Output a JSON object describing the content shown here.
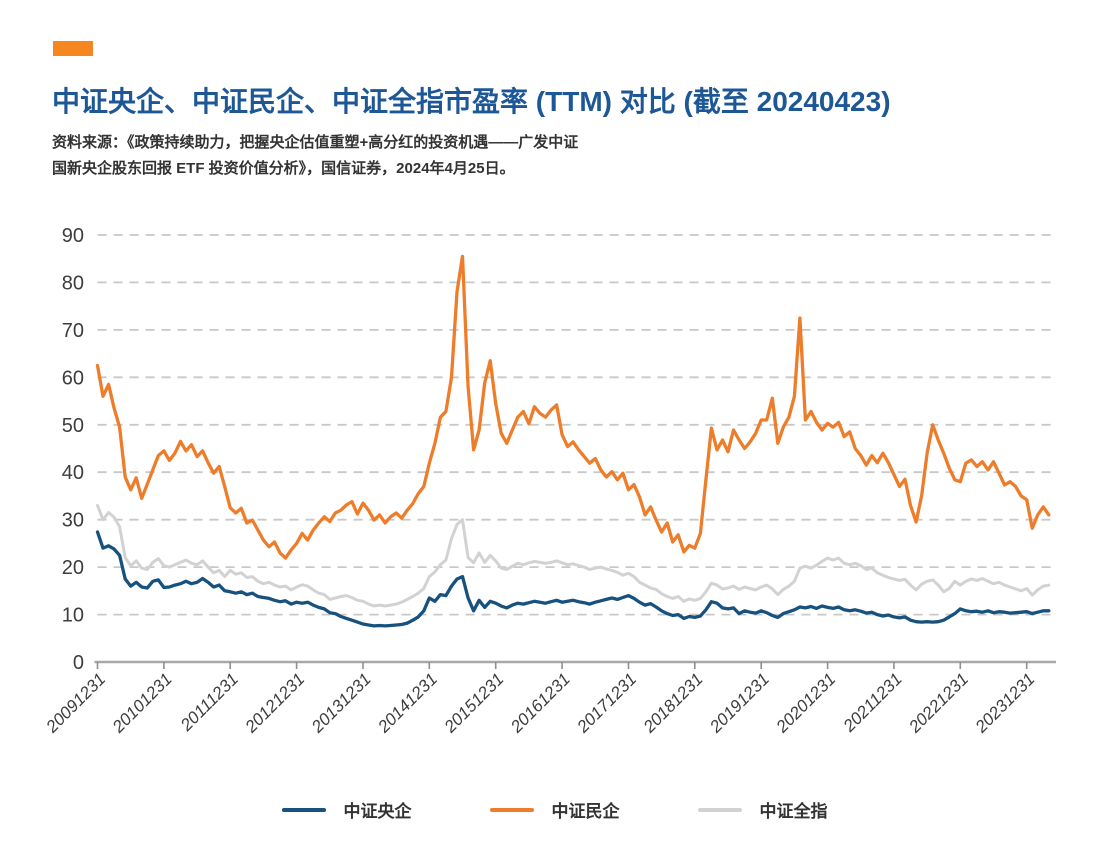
{
  "page": {
    "accent_bar_color": "#F6861F",
    "title": "中证央企、中证民企、中证全指市盈率 (TTM) 对比 (截至 20240423)",
    "title_color": "#1D5796",
    "source_line1": "资料来源：《政策持续助力，把握央企估值重塑+高分红的投资机遇——广发中证",
    "source_line2": "国新央企股东回报 ETF 投资价值分析》，国信证券，2024年4月25日。"
  },
  "chart_data": {
    "type": "line",
    "title": "中证央企、中证民企、中证全指市盈率 (TTM) 对比 (截至 20240423)",
    "source": "资料来源：《政策持续助力，把握央企估值重塑+高分红的投资机遇——广发中证国新央企股东回报 ETF 投资价值分析》，国信证券，2024年4月25日。",
    "x_start": "2009-12-31",
    "x_end": "2024-04-23",
    "frequency": "monthly",
    "x_tick_labels": [
      "20091231",
      "20101231",
      "20111231",
      "20121231",
      "20131231",
      "20141231",
      "20151231",
      "20161231",
      "20171231",
      "20181231",
      "20191231",
      "20201231",
      "20211231",
      "20221231",
      "20231231"
    ],
    "ylim": [
      0,
      90
    ],
    "yticks": [
      0,
      10,
      20,
      30,
      40,
      50,
      60,
      70,
      80,
      90
    ],
    "grid": "horizontal-dashed",
    "legend_position": "bottom",
    "series": [
      {
        "id": "csi-central-soe",
        "name": "中证央企",
        "color": "#17517E",
        "values": [
          27.4,
          24,
          24.5,
          23.8,
          22.5,
          17.5,
          16,
          16.8,
          15.8,
          15.6,
          17,
          17.3,
          15.7,
          15.8,
          16.2,
          16.5,
          17,
          16.5,
          16.8,
          17.6,
          16.8,
          15.8,
          16.2,
          15,
          14.8,
          14.5,
          14.8,
          14.2,
          14.5,
          13.8,
          13.6,
          13.4,
          13,
          12.7,
          12.9,
          12.2,
          12.6,
          12.4,
          12.6,
          12,
          11.5,
          11.2,
          10.4,
          10.2,
          9.6,
          9.2,
          8.8,
          8.4,
          8,
          7.8,
          7.6,
          7.7,
          7.6,
          7.7,
          7.8,
          7.9,
          8.2,
          8.8,
          9.5,
          10.8,
          13.5,
          12.8,
          14.2,
          14,
          16,
          17.5,
          18,
          13.5,
          10.8,
          13,
          11.5,
          12.8,
          12.4,
          11.8,
          11.4,
          12,
          12.4,
          12.2,
          12.5,
          12.8,
          12.6,
          12.4,
          12.7,
          13,
          12.6,
          12.8,
          13,
          12.7,
          12.5,
          12.2,
          12.6,
          12.9,
          13.2,
          13.5,
          13.2,
          13.6,
          14,
          13.4,
          12.6,
          12,
          12.3,
          11.6,
          10.8,
          10.2,
          9.8,
          10,
          9.2,
          9.6,
          9.4,
          9.7,
          11,
          12.7,
          12.4,
          11.4,
          11.2,
          11.4,
          10.2,
          10.8,
          10.5,
          10.3,
          10.8,
          10.4,
          9.8,
          9.4,
          10.2,
          10.6,
          11,
          11.6,
          11.4,
          11.7,
          11.3,
          11.8,
          11.5,
          11.3,
          11.6,
          11,
          10.8,
          11,
          10.7,
          10.3,
          10.5,
          10,
          9.7,
          9.9,
          9.5,
          9.3,
          9.5,
          8.8,
          8.5,
          8.4,
          8.5,
          8.4,
          8.5,
          8.8,
          9.5,
          10.2,
          11.2,
          10.8,
          10.6,
          10.7,
          10.5,
          10.8,
          10.4,
          10.6,
          10.5,
          10.3,
          10.4,
          10.5,
          10.6,
          10.2,
          10.5,
          10.8,
          10.8
        ]
      },
      {
        "id": "csi-private-enterprise",
        "name": "中证民企",
        "color": "#ED7D2B",
        "values": [
          62.5,
          56,
          58.5,
          53.5,
          49.5,
          39,
          36.3,
          38.8,
          34.5,
          37.5,
          40.5,
          43.5,
          44.5,
          42.5,
          44,
          46.5,
          44.5,
          45.8,
          43.3,
          44.5,
          42,
          39.8,
          41.2,
          37,
          32.5,
          31.4,
          32.4,
          29.3,
          29.9,
          27.8,
          25.7,
          24.3,
          25.3,
          23,
          21.9,
          23.6,
          25,
          27.1,
          25.7,
          27.8,
          29.3,
          30.6,
          29.6,
          31.4,
          32,
          33.1,
          33.8,
          31.2,
          33.5,
          32,
          29.9,
          31,
          29.3,
          30.6,
          31.4,
          30.3,
          32,
          33.4,
          35.5,
          37,
          41.9,
          46.1,
          51.6,
          52.8,
          60,
          78,
          85.5,
          58,
          44.7,
          48.9,
          58.8,
          63.5,
          54.5,
          48.2,
          46.1,
          48.9,
          51.6,
          52.8,
          50.2,
          53.8,
          52.4,
          51.6,
          53.1,
          54.2,
          47.9,
          45.4,
          46.4,
          44.7,
          43.3,
          41.9,
          42.9,
          40.5,
          39,
          40.1,
          38.4,
          39.8,
          36.3,
          37.4,
          34.8,
          31,
          32.7,
          29.9,
          27.4,
          29.3,
          25.3,
          26.8,
          23.2,
          24.6,
          24,
          27.1,
          38.4,
          49.3,
          44.7,
          46.8,
          44.3,
          48.9,
          46.8,
          45,
          46.4,
          48.2,
          51,
          51,
          55.6,
          46.1,
          49.5,
          51.6,
          56,
          72.5,
          51,
          52.8,
          50.5,
          48.9,
          50.3,
          49.5,
          50.5,
          47.5,
          48.5,
          45,
          43.5,
          41.5,
          43.5,
          42,
          44,
          42,
          39.5,
          37,
          38.5,
          33,
          29.5,
          35,
          44,
          50,
          46.8,
          44,
          40.9,
          38.4,
          38,
          41.9,
          42.6,
          41.2,
          42.2,
          40.5,
          42.2,
          39.8,
          37.3,
          38,
          37,
          35,
          34.2,
          28.2,
          31,
          32.7,
          31
        ]
      },
      {
        "id": "csi-all-share",
        "name": "中证全指",
        "color": "#D2D2D2",
        "values": [
          33,
          30,
          31.5,
          30.5,
          28.5,
          22,
          20.3,
          21.3,
          19.8,
          19.5,
          21,
          21.8,
          20.3,
          20,
          20.5,
          21,
          21.5,
          20.8,
          20.5,
          21.3,
          20,
          18.8,
          19.3,
          18,
          19.3,
          18.5,
          18.8,
          17.8,
          18,
          17,
          16.5,
          16.8,
          16.2,
          15.8,
          16,
          15.2,
          15.8,
          16.3,
          16,
          15.2,
          14.5,
          14.2,
          13.2,
          13.5,
          13.8,
          14,
          13.6,
          13,
          12.8,
          12.2,
          11.8,
          12,
          11.8,
          12,
          12.2,
          12.6,
          13.2,
          13.8,
          14.5,
          15.5,
          18,
          19,
          20.5,
          21.5,
          26,
          29,
          30,
          22,
          20.9,
          23,
          21,
          22.5,
          21.3,
          19.8,
          19.5,
          20.2,
          20.8,
          20.5,
          20.9,
          21.2,
          21,
          20.8,
          21,
          21.3,
          20.9,
          20.5,
          20.7,
          20.3,
          20,
          19.5,
          19.8,
          20,
          19.6,
          19.3,
          18.9,
          18.3,
          18.7,
          18,
          16.8,
          16.2,
          15.6,
          15.3,
          14.4,
          13.8,
          13.4,
          13.8,
          12.8,
          13.3,
          13,
          13.4,
          14.8,
          16.6,
          16.2,
          15.4,
          15.6,
          16,
          15.3,
          15.8,
          15.5,
          15.2,
          15.8,
          16.2,
          15.4,
          14.2,
          15.3,
          16,
          17,
          19.8,
          20.2,
          19.8,
          20.4,
          21.2,
          21.9,
          21.5,
          21.9,
          20.8,
          20.5,
          20.8,
          20.3,
          19.5,
          19.8,
          18.8,
          18.3,
          17.8,
          17.5,
          17.2,
          17.4,
          16.2,
          15.2,
          16.4,
          17,
          17.3,
          16.2,
          14.8,
          15.5,
          17,
          16.2,
          17,
          17.5,
          17.2,
          17.6,
          17,
          16.5,
          16.8,
          16.2,
          15.8,
          15.4,
          15,
          15.5,
          14.1,
          15.2,
          16,
          16.2
        ]
      }
    ]
  }
}
